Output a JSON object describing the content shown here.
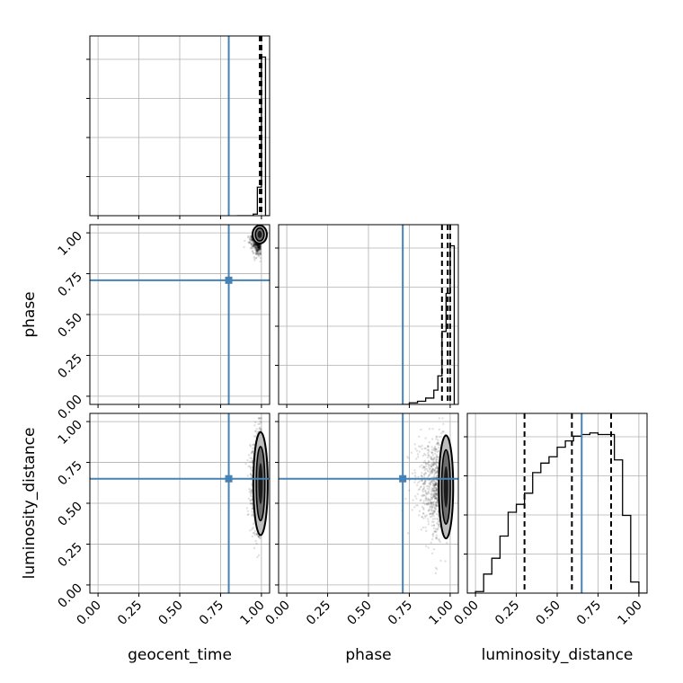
{
  "chart_data": {
    "type": "corner",
    "params": [
      "geocent_time",
      "phase",
      "luminosity_distance"
    ],
    "axis_labels": {
      "x": [
        "geocent_time",
        "phase",
        "luminosity_distance"
      ],
      "y": [
        "",
        "phase",
        "luminosity_distance"
      ]
    },
    "tick_labels": [
      "0.00",
      "0.25",
      "0.50",
      "0.75",
      "1.00"
    ],
    "tick_values": [
      0,
      0.25,
      0.5,
      0.75,
      1.0
    ],
    "axis_range": [
      -0.05,
      1.05
    ],
    "truths": [
      0.8,
      0.71,
      0.65
    ],
    "truth_color": "#4682b4",
    "grid": true,
    "quantiles": [
      [
        0.99,
        0.995,
        1.0
      ],
      [
        0.95,
        0.985,
        1.0
      ],
      [
        0.3,
        0.59,
        0.83
      ]
    ],
    "histograms": [
      {
        "bin_edges": [
          0.85,
          0.875,
          0.9,
          0.925,
          0.95,
          0.975,
          1.0,
          1.025,
          1.05
        ],
        "counts": [
          0,
          0,
          0,
          0,
          0.01,
          0.18,
          1.0,
          0
        ]
      },
      {
        "bin_edges": [
          0.7,
          0.75,
          0.8,
          0.85,
          0.9,
          0.925,
          0.95,
          0.975,
          1.0,
          1.025
        ],
        "counts": [
          0,
          0.01,
          0.02,
          0.04,
          0.09,
          0.18,
          0.46,
          0.7,
          1.0
        ]
      },
      {
        "bin_edges": [
          -0.05,
          0.0,
          0.05,
          0.1,
          0.15,
          0.2,
          0.25,
          0.3,
          0.35,
          0.4,
          0.45,
          0.5,
          0.55,
          0.6,
          0.65,
          0.7,
          0.75,
          0.8,
          0.85,
          0.9,
          0.95,
          1.0,
          1.05
        ],
        "counts": [
          0,
          0.01,
          0.12,
          0.22,
          0.36,
          0.51,
          0.56,
          0.63,
          0.76,
          0.82,
          0.86,
          0.92,
          0.96,
          0.99,
          1.0,
          1.01,
          1.0,
          1.0,
          0.84,
          0.49,
          0.07,
          0
        ]
      }
    ],
    "density_panels": [
      {
        "row": 1,
        "col": 0,
        "x_param": "geocent_time",
        "y_param": "phase",
        "core_x": 0.995,
        "core_y": 0.99,
        "spread_x": 0.025,
        "spread_y": 0.05
      },
      {
        "row": 2,
        "col": 0,
        "x_param": "geocent_time",
        "y_param": "luminosity_distance",
        "core_x": 1.0,
        "core_y": 0.62,
        "spread_x": 0.03,
        "spread_y": 0.3
      },
      {
        "row": 2,
        "col": 1,
        "x_param": "phase",
        "y_param": "luminosity_distance",
        "core_x": 0.98,
        "core_y": 0.6,
        "spread_x": 0.08,
        "spread_y": 0.3
      }
    ]
  }
}
